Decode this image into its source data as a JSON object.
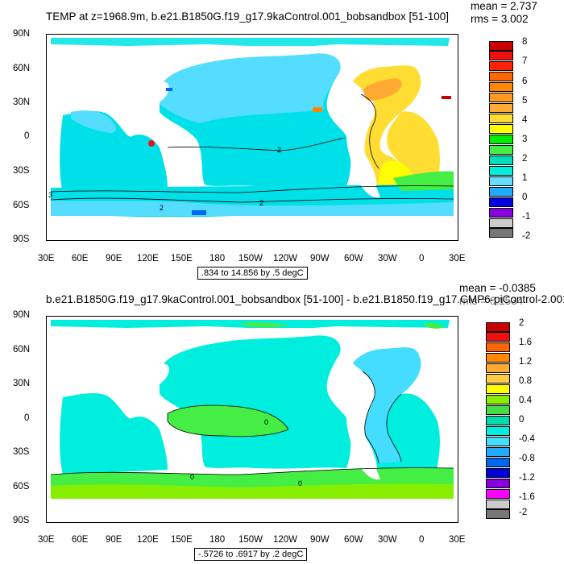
{
  "panels": [
    {
      "title": "TEMP at z=1968.9m, b.e21.B1850G.f19_g17.9kaControl.001_bobsandbox [51-100]",
      "mean": "mean = 2.737",
      "rms": "rms = 3.002",
      "range": ".834 to 14.856 by .5 degC",
      "contour_labels": [
        "2",
        "2",
        "2",
        "3"
      ],
      "colorbar": {
        "labels": [
          "8",
          "7",
          "6",
          "5",
          "4",
          "3",
          "2",
          "1",
          "0",
          "-1",
          "-2"
        ],
        "colors": [
          "#c80000",
          "#ee1111",
          "#ff8800",
          "#ffaa33",
          "#ffdd33",
          "#ffff00",
          "#00ee00",
          "#44ee44",
          "#00ddbb",
          "#00eedd",
          "#66ddff",
          "#22aaff",
          "#0066ee",
          "#0000dd",
          "#8800dd",
          "#ff00ff",
          "#cccccc",
          "#777777"
        ]
      }
    },
    {
      "title": "b.e21.B1850G.f19_g17.9kaControl.001_bobsandbox [51-100] - b.e21.B1850.f19_g17.CMP6-piControl-2.001",
      "mean": "mean = -0.0385",
      "rms": "rms = 0.1534",
      "range": "-.5726 to .6917 by .2 degC",
      "contour_labels": [
        "0",
        "0",
        "0"
      ],
      "colorbar": {
        "labels": [
          "2",
          "1.6",
          "1.2",
          "0.8",
          "0.4",
          "0",
          "-0.4",
          "-0.8",
          "-1.2",
          "-1.6",
          "-2"
        ],
        "colors": [
          "#c80000",
          "#ee1111",
          "#ff6600",
          "#ff8800",
          "#ffaa33",
          "#ffcc44",
          "#ffff00",
          "#88ee00",
          "#44dd44",
          "#00ddaa",
          "#00eedd",
          "#44ddff",
          "#22aaff",
          "#0066ee",
          "#0000dd",
          "#8800dd",
          "#ff00ff",
          "#cccccc",
          "#777777"
        ]
      }
    }
  ],
  "lat_labels": [
    "90N",
    "60N",
    "30N",
    "0",
    "30S",
    "60S",
    "90S"
  ],
  "lon_labels": [
    "30E",
    "60E",
    "90E",
    "120E",
    "150E",
    "180",
    "150W",
    "120W",
    "90W",
    "60W",
    "30W",
    "0",
    "30E"
  ]
}
